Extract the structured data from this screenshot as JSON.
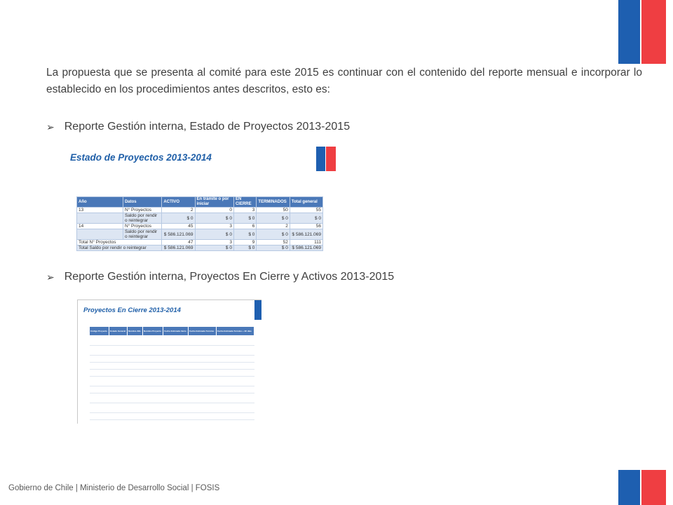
{
  "intro_text": "La propuesta que se presenta al comité para este 2015 es continuar con el contenido del reporte mensual e incorporar lo establecido en los procedimientos antes descritos, esto es:",
  "bullets": [
    "Reporte Gestión interna, Estado de Proyectos 2013-2015",
    "Reporte Gestión interna, Proyectos En Cierre y Activos 2013-2015"
  ],
  "bullet_icon": "arrow-right-icon",
  "image1": {
    "title": "Estado de Proyectos 2013-2014",
    "headers": [
      "Año",
      "Datos",
      "ACTIVO",
      "En trámite o por iniciar",
      "EN CIERRE",
      "TERMINADOS",
      "Total general"
    ],
    "rows": [
      [
        "13",
        "N° Proyectos",
        "2",
        "0",
        "3",
        "50",
        "55"
      ],
      [
        "",
        "Saldo por rendir o reintegrar",
        "$ 0",
        "$ 0",
        "$ 0",
        "$ 0",
        "$ 0"
      ],
      [
        "14",
        "N° Proyectos",
        "45",
        "3",
        "6",
        "2",
        "56"
      ],
      [
        "",
        "Saldo por rendir o reintegrar",
        "$ 586.121.069",
        "$ 0",
        "$ 0",
        "$ 0",
        "$ 586.121.069"
      ],
      [
        "Total N° Proyectos",
        "",
        "47",
        "3",
        "9",
        "52",
        "111"
      ],
      [
        "Total Saldo por rendir o reintegrar",
        "",
        "$ 586.121.069",
        "$ 0",
        "$ 0",
        "$ 0",
        "$ 586.121.069"
      ]
    ]
  },
  "image2": {
    "title": "Proyectos En Cierre 2013-2014",
    "headers": [
      "Código Proyecto",
      "Estado General",
      "Nombre AEL",
      "Nombre Proyecto",
      "Fecha Estimada Inicio",
      "Fecha Estimada Termino",
      "Fecha Estimada Termino + 90 días"
    ]
  },
  "footer": "Gobierno de Chile | Ministerio de Desarrollo Social | FOSIS",
  "colors": {
    "flag_blue": "#1e5fb0",
    "flag_red": "#ef3e42",
    "accent_title": "#1f5fa8",
    "table_header": "#4a78b8"
  }
}
